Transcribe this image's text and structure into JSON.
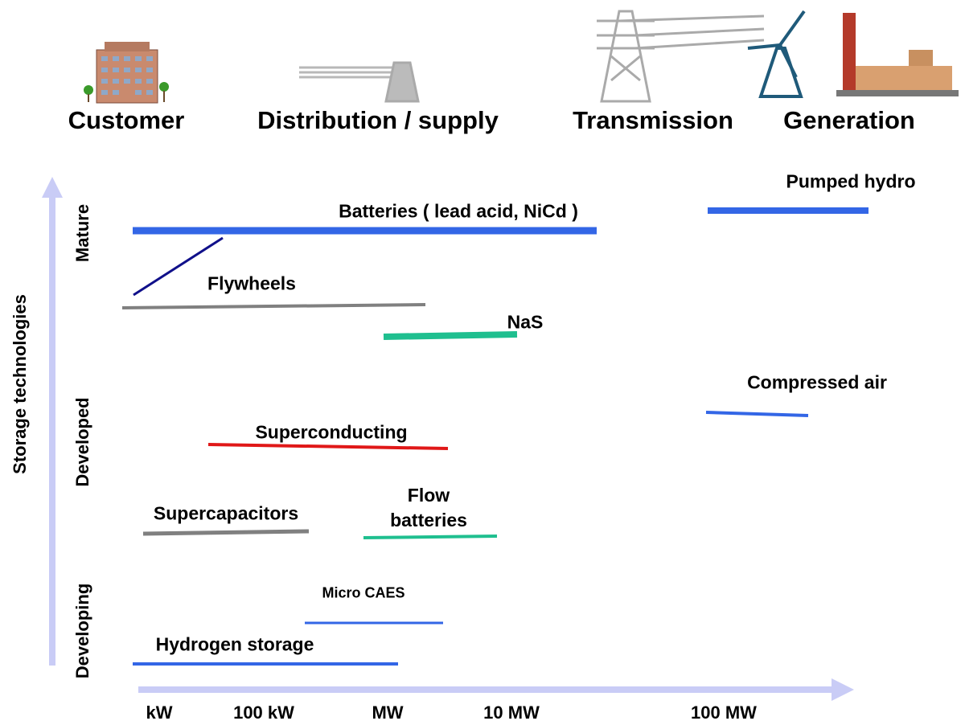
{
  "header": {
    "sectors": [
      "Customer",
      "Distribution / supply",
      "Transmission",
      "Generation"
    ]
  },
  "y_axis": {
    "title": "Storage technologies",
    "levels": [
      "Mature",
      "Developed",
      "Developing"
    ]
  },
  "x_axis": {
    "ticks": [
      "kW",
      "100 kW",
      "MW",
      "10 MW",
      "100 MW"
    ]
  },
  "technologies": [
    {
      "label": "Batteries ( lead acid, NiCd )"
    },
    {
      "label": "Pumped hydro"
    },
    {
      "label": "Flywheels"
    },
    {
      "label": "NaS"
    },
    {
      "label": "Compressed air"
    },
    {
      "label": "Superconducting"
    },
    {
      "label": "Supercapacitors"
    },
    {
      "label": "Flow batteries"
    },
    {
      "label": "Micro CAES"
    },
    {
      "label": "Hydrogen storage"
    }
  ]
}
